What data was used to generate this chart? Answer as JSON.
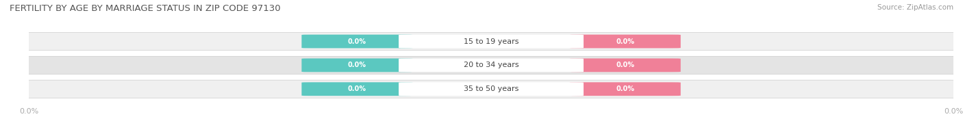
{
  "title": "FERTILITY BY AGE BY MARRIAGE STATUS IN ZIP CODE 97130",
  "source": "Source: ZipAtlas.com",
  "categories": [
    "15 to 19 years",
    "20 to 34 years",
    "35 to 50 years"
  ],
  "married_values": [
    0.0,
    0.0,
    0.0
  ],
  "unmarried_values": [
    0.0,
    0.0,
    0.0
  ],
  "married_color": "#5BC8C0",
  "unmarried_color": "#F08098",
  "title_color": "#555555",
  "source_color": "#999999",
  "fig_bg_color": "#FFFFFF",
  "row_colors": [
    "#F0F0F0",
    "#E4E4E4",
    "#F0F0F0"
  ],
  "row_border_color": "#CCCCCC",
  "center_label_color": "#444444",
  "value_label_color": "#FFFFFF",
  "x_tick_color": "#AAAAAA",
  "legend_label_color": "#555555"
}
